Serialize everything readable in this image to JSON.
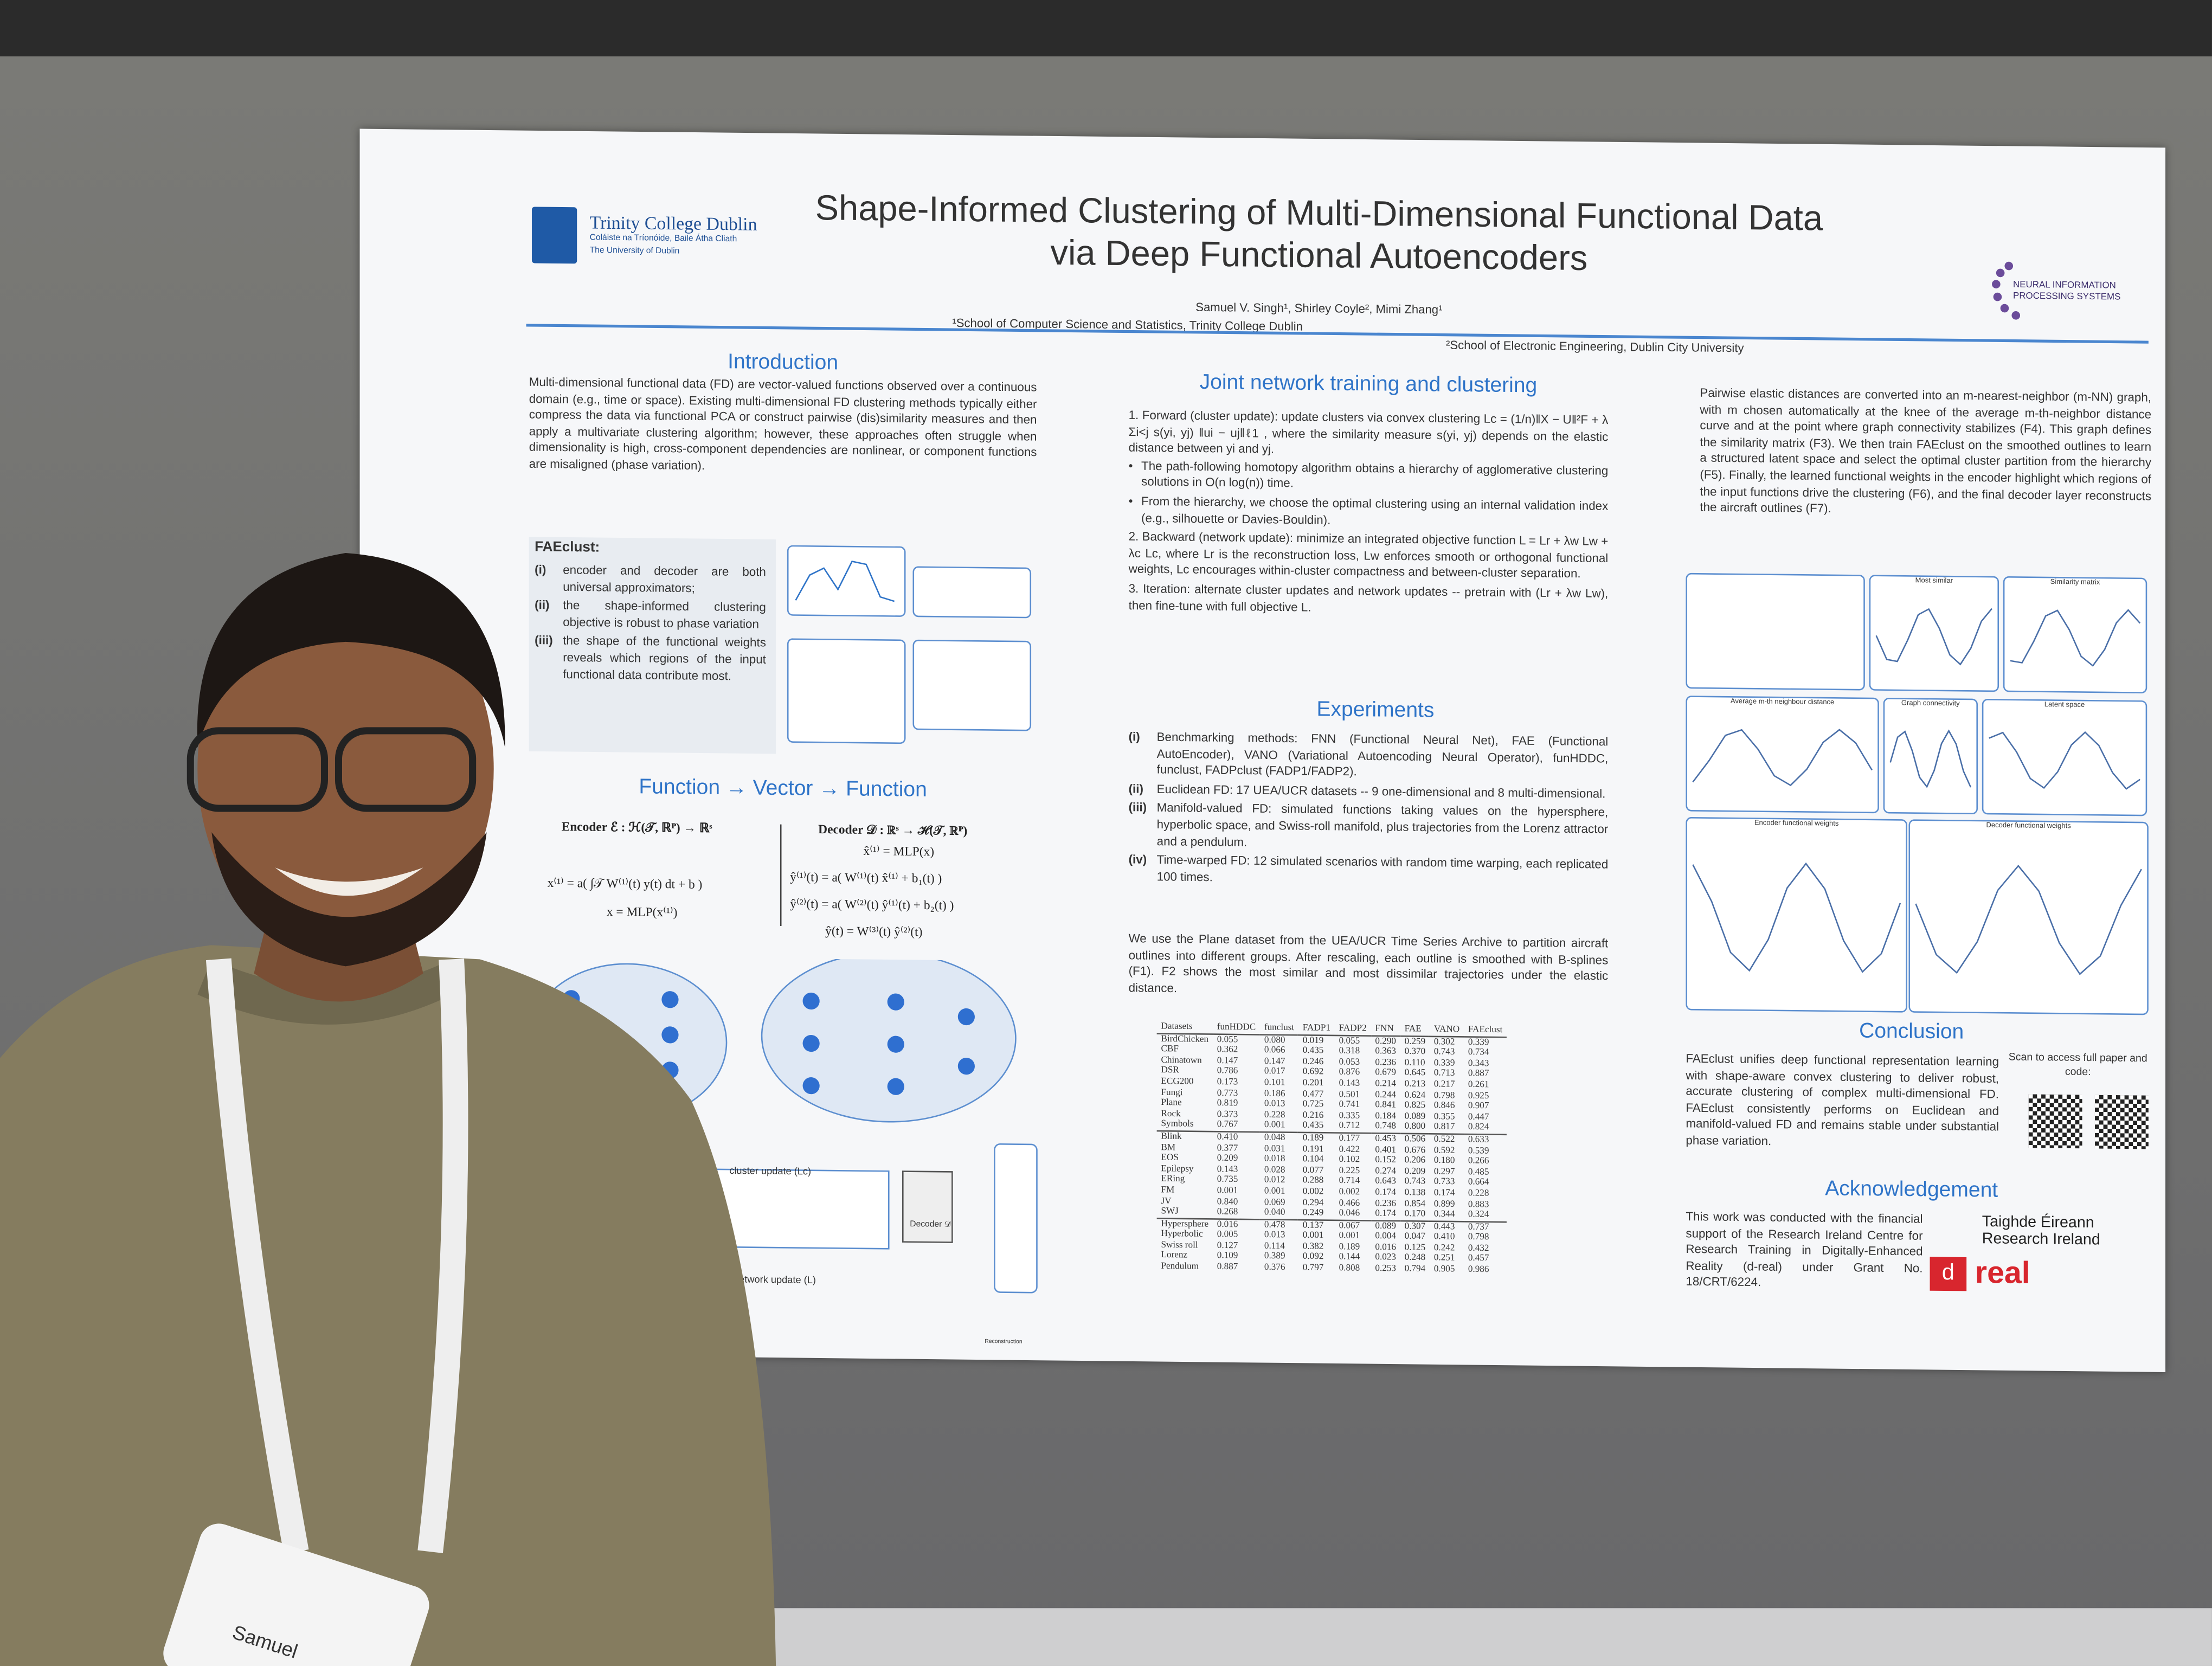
{
  "header": {
    "institution": "Trinity College Dublin",
    "institution_irish": "Coláiste na Tríonóide, Baile Átha Cliath",
    "institution_sub": "The University of Dublin",
    "title_line1": "Shape-Informed Clustering of Multi-Dimensional Functional Data",
    "title_line2": "via Deep Functional Autoencoders",
    "authors": "Samuel V. Singh¹, Shirley Coyle², Mimi Zhang¹",
    "affiliation1": "¹School of Computer Science and Statistics, Trinity College Dublin",
    "affiliation2": "²School of Electronic Engineering, Dublin City University",
    "conference": "NEURAL INFORMATION PROCESSING SYSTEMS"
  },
  "introduction": {
    "heading": "Introduction",
    "text": "Multi-dimensional functional data (FD) are vector-valued functions observed over a continuous domain (e.g., time or space). Existing multi-dimensional FD clustering methods typically either compress the data via functional PCA or construct pairwise (dis)similarity measures and then apply a multivariate clustering algorithm; however, these approaches often struggle when dimensionality is high, cross-component dependencies are nonlinear, or component functions are misaligned (phase variation).",
    "faeclust_heading": "FAEclust:",
    "items": [
      {
        "mark": "(i)",
        "text": "encoder and decoder are both universal approximators;"
      },
      {
        "mark": "(ii)",
        "text": "the shape-informed clustering objective is robust to phase variation"
      },
      {
        "mark": "(iii)",
        "text": "the shape of the functional weights reveals which regions of the input functional data contribute most."
      }
    ]
  },
  "function_section": {
    "heading": "Function → Vector → Function",
    "encoder_label": "Encoder ℰ : ℋ(𝒯, ℝᴾ) → ℝˢ",
    "encoder_eq1": "x⁽¹⁾ = a( ∫𝒯 W⁽¹⁾(t) y(t) dt + b )",
    "encoder_eq2": "x = MLP(x⁽¹⁾)",
    "decoder_label": "Decoder 𝒟 : ℝˢ → ℋ(𝒯, ℝᴾ)",
    "decoder_eq1": "x̂⁽¹⁾ = MLP(x)",
    "decoder_eq2": "ŷ⁽¹⁾(t) = a( W⁽¹⁾(t) x̂⁽¹⁾ + b₁(t) )",
    "decoder_eq3": "ŷ⁽²⁾(t) = a( W⁽²⁾(t) ŷ⁽¹⁾(t) + b₂(t) )",
    "decoder_eq4": "ŷ(t) = W⁽³⁾(t) ŷ⁽²⁾(t)",
    "cluster_update": "cluster update (Lc)",
    "network_update": "network update (L)",
    "decoder_box": "Decoder 𝒟",
    "reconstruction": "Reconstruction"
  },
  "joint": {
    "heading": "Joint network training and clustering",
    "p1": "1. Forward (cluster update): update clusters via convex clustering Lc = (1/n)‖X − U‖²F + λ Σi<j s(yi, yj) ‖ui − uj‖ℓ1 , where the similarity measure s(yi, yj) depends on the elastic distance between yi and yj.",
    "b1": "The path-following homotopy algorithm obtains a hierarchy of agglomerative clustering solutions in O(n log(n)) time.",
    "b2": "From the hierarchy, we choose the optimal clustering using an internal validation index (e.g., silhouette or Davies-Bouldin).",
    "p2": "2. Backward (network update): minimize an integrated objective function L = Lr + λw Lw + λc Lc, where Lr is the reconstruction loss, Lw enforces smooth or orthogonal functional weights, Lc encourages within-cluster compactness and between-cluster separation.",
    "p3": "3. Iteration: alternate cluster updates and network updates -- pretrain with (Lr + λw Lw), then fine-tune with full objective L."
  },
  "experiments": {
    "heading": "Experiments",
    "items": [
      {
        "mark": "(i)",
        "text": "Benchmarking methods: FNN (Functional Neural Net), FAE (Functional AutoEncoder), VANO (Variational Autoencoding Neural Operator), funHDDC, funclust, FADPclust (FADP1/FADP2)."
      },
      {
        "mark": "(ii)",
        "text": "Euclidean FD: 17 UEA/UCR datasets -- 9 one-dimensional and 8 multi-dimensional."
      },
      {
        "mark": "(iii)",
        "text": "Manifold-valued FD: simulated functions taking values on the hypersphere, hyperbolic space, and Swiss-roll manifold, plus trajectories from the Lorenz attractor and a pendulum."
      },
      {
        "mark": "(iv)",
        "text": "Time-warped FD: 12 simulated scenarios with random time warping, each replicated 100 times."
      }
    ],
    "text": "We use the Plane dataset from the UEA/UCR Time Series Archive to partition aircraft outlines into different groups. After rescaling, each outline is smoothed with B-splines (F1). F2 shows the most similar and most dissimilar trajectories under the elastic distance."
  },
  "table": {
    "columns": [
      "Datasets",
      "funHDDC",
      "funclust",
      "FADP1",
      "FADP2",
      "FNN",
      "FAE",
      "VANO",
      "FAEclust"
    ],
    "groups": [
      [
        [
          "BirdChicken",
          "0.055",
          "0.080",
          "0.019",
          "0.055",
          "0.290",
          "0.259",
          "0.302",
          "0.339"
        ],
        [
          "CBF",
          "0.362",
          "0.066",
          "0.435",
          "0.318",
          "0.363",
          "0.370",
          "0.743",
          "0.734"
        ],
        [
          "Chinatown",
          "0.147",
          "0.147",
          "0.246",
          "0.053",
          "0.236",
          "0.110",
          "0.339",
          "0.343"
        ],
        [
          "DSR",
          "0.786",
          "0.017",
          "0.692",
          "0.876",
          "0.679",
          "0.645",
          "0.713",
          "0.887"
        ],
        [
          "ECG200",
          "0.173",
          "0.101",
          "0.201",
          "0.143",
          "0.214",
          "0.213",
          "0.217",
          "0.261"
        ],
        [
          "Fungi",
          "0.773",
          "0.186",
          "0.477",
          "0.501",
          "0.244",
          "0.624",
          "0.798",
          "0.925"
        ],
        [
          "Plane",
          "0.819",
          "0.013",
          "0.725",
          "0.741",
          "0.841",
          "0.825",
          "0.846",
          "0.907"
        ],
        [
          "Rock",
          "0.373",
          "0.228",
          "0.216",
          "0.335",
          "0.184",
          "0.089",
          "0.355",
          "0.447"
        ],
        [
          "Symbols",
          "0.767",
          "0.001",
          "0.435",
          "0.712",
          "0.748",
          "0.800",
          "0.817",
          "0.824"
        ]
      ],
      [
        [
          "Blink",
          "0.410",
          "0.048",
          "0.189",
          "0.177",
          "0.453",
          "0.506",
          "0.522",
          "0.633"
        ],
        [
          "BM",
          "0.377",
          "0.031",
          "0.191",
          "0.422",
          "0.401",
          "0.676",
          "0.592",
          "0.539"
        ],
        [
          "EOS",
          "0.209",
          "0.018",
          "0.104",
          "0.102",
          "0.152",
          "0.206",
          "0.180",
          "0.266"
        ],
        [
          "Epilepsy",
          "0.143",
          "0.028",
          "0.077",
          "0.225",
          "0.274",
          "0.209",
          "0.297",
          "0.485"
        ],
        [
          "ERing",
          "0.735",
          "0.012",
          "0.288",
          "0.714",
          "0.643",
          "0.743",
          "0.733",
          "0.664"
        ],
        [
          "FM",
          "0.001",
          "0.001",
          "0.002",
          "0.002",
          "0.174",
          "0.138",
          "0.174",
          "0.228"
        ],
        [
          "JV",
          "0.840",
          "0.069",
          "0.294",
          "0.466",
          "0.236",
          "0.854",
          "0.899",
          "0.883"
        ],
        [
          "SWJ",
          "0.268",
          "0.040",
          "0.249",
          "0.046",
          "0.174",
          "0.170",
          "0.344",
          "0.324"
        ]
      ],
      [
        [
          "Hypersphere",
          "0.016",
          "0.478",
          "0.137",
          "0.067",
          "0.089",
          "0.307",
          "0.443",
          "0.737"
        ],
        [
          "Hyperbolic",
          "0.005",
          "0.013",
          "0.001",
          "0.001",
          "0.004",
          "0.047",
          "0.410",
          "0.798"
        ],
        [
          "Swiss roll",
          "0.127",
          "0.114",
          "0.382",
          "0.189",
          "0.016",
          "0.125",
          "0.242",
          "0.432"
        ],
        [
          "Lorenz",
          "0.109",
          "0.389",
          "0.092",
          "0.144",
          "0.023",
          "0.248",
          "0.251",
          "0.457"
        ],
        [
          "Pendulum",
          "0.887",
          "0.376",
          "0.797",
          "0.808",
          "0.253",
          "0.794",
          "0.905",
          "0.986"
        ]
      ]
    ]
  },
  "right": {
    "text": "Pairwise elastic distances are converted into an m-nearest-neighbor (m-NN) graph, with m chosen automatically at the knee of the average m-th-neighbor distance curve and at the point where graph connectivity stabilizes (F4). This graph defines the similarity matrix (F3). We then train FAEclust on the smoothed outlines to learn a structured latent space and select the optimal cluster partition from the hierarchy (F5). Finally, the learned functional weights in the encoder highlight which regions of the input functions drive the clustering (F6), and the final decoder layer reconstructs the aircraft outlines (F7).",
    "fig_titles": [
      "Most similar",
      "Similarity matrix",
      "Average m-th neighbour distance",
      "Graph connectivity",
      "Latent space",
      "Encoder functional weights",
      "Decoder functional weights"
    ],
    "conclusion_heading": "Conclusion",
    "conclusion": "FAEclust unifies deep functional representation learning with shape-aware convex clustering to deliver robust, accurate clustering of complex multi-dimensional FD. FAEclust consistently performs on Euclidean and manifold-valued FD and remains stable under substantial phase variation.",
    "qr_note": "Scan to access full paper and code:",
    "ack_heading": "Acknowledgement",
    "ack": "This work was conducted with the financial support of the Research Ireland Centre for Research Training in Digitally-Enhanced Reality (d-real) under Grant No. 18/CRT/6224.",
    "funder1": "Taighde Éireann",
    "funder2": "Research Ireland",
    "funder3": "real"
  },
  "badge": {
    "name": "Samuel"
  }
}
